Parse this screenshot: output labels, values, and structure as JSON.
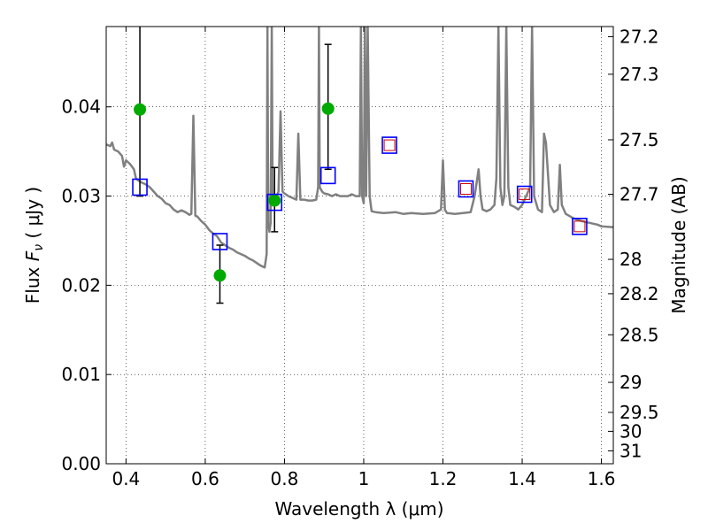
{
  "chart_data": {
    "type": "scatter",
    "title": "",
    "xlabel": "Wavelength  λ (μm)",
    "ylabel": "Flux  F_ν  ( μJy )",
    "ylabel_parts": {
      "pre": "Flux  ",
      "var": "F",
      "sub": "ν",
      "post": "  ( μJy )"
    },
    "y2label": "Magnitude (AB)",
    "xlim": [
      0.35,
      1.63
    ],
    "ylim": [
      0.0,
      0.049
    ],
    "grid": true,
    "x_ticks": [
      {
        "value": 0.4,
        "label": "0.4"
      },
      {
        "value": 0.6,
        "label": "0.6"
      },
      {
        "value": 0.8,
        "label": "0.8"
      },
      {
        "value": 1.0,
        "label": "1"
      },
      {
        "value": 1.2,
        "label": "1.2"
      },
      {
        "value": 1.4,
        "label": "1.4"
      },
      {
        "value": 1.6,
        "label": "1.6"
      }
    ],
    "y_ticks": [
      {
        "value": 0.0,
        "label": "0.00"
      },
      {
        "value": 0.01,
        "label": "0.01"
      },
      {
        "value": 0.02,
        "label": "0.02"
      },
      {
        "value": 0.03,
        "label": "0.03"
      },
      {
        "value": 0.04,
        "label": "0.04"
      }
    ],
    "magnitude_ticks": [
      {
        "mag": 27.2,
        "label": "27.2"
      },
      {
        "mag": 27.3,
        "label": "27.3"
      },
      {
        "mag": 27.5,
        "label": "27.5"
      },
      {
        "mag": 27.7,
        "label": "27.7"
      },
      {
        "mag": 28.0,
        "label": "28"
      },
      {
        "mag": 28.2,
        "label": "28.2"
      },
      {
        "mag": 28.5,
        "label": "28.5"
      },
      {
        "mag": 29.0,
        "label": "29"
      },
      {
        "mag": 29.5,
        "label": "29.5"
      },
      {
        "mag": 30.0,
        "label": "30"
      },
      {
        "mag": 31.0,
        "label": "31"
      }
    ],
    "colors": {
      "model": "#808080",
      "observed": "#00aa00",
      "model_box": "#0000ff",
      "inner_box": "#cc0000",
      "errorbar": "#000000",
      "grid": "#000000"
    },
    "series": [
      {
        "type": "line",
        "points": [
          [
            0.35,
            0.0358
          ],
          [
            0.36,
            0.0356
          ],
          [
            0.365,
            0.036
          ],
          [
            0.37,
            0.0352
          ],
          [
            0.38,
            0.035
          ],
          [
            0.39,
            0.0345
          ],
          [
            0.395,
            0.0333
          ],
          [
            0.4,
            0.034
          ],
          [
            0.41,
            0.0336
          ],
          [
            0.42,
            0.033
          ],
          [
            0.425,
            0.032
          ],
          [
            0.43,
            0.0318
          ],
          [
            0.44,
            0.0315
          ],
          [
            0.45,
            0.0313
          ],
          [
            0.46,
            0.031
          ],
          [
            0.47,
            0.0305
          ],
          [
            0.48,
            0.03
          ],
          [
            0.49,
            0.0297
          ],
          [
            0.5,
            0.0292
          ],
          [
            0.51,
            0.029
          ],
          [
            0.52,
            0.0285
          ],
          [
            0.53,
            0.0282
          ],
          [
            0.54,
            0.0284
          ],
          [
            0.55,
            0.0282
          ],
          [
            0.56,
            0.0279
          ],
          [
            0.565,
            0.028
          ],
          [
            0.57,
            0.039
          ],
          [
            0.575,
            0.0278
          ],
          [
            0.58,
            0.0277
          ],
          [
            0.59,
            0.0272
          ],
          [
            0.6,
            0.0268
          ],
          [
            0.61,
            0.0262
          ],
          [
            0.62,
            0.0258
          ],
          [
            0.63,
            0.0255
          ],
          [
            0.64,
            0.0248
          ],
          [
            0.65,
            0.0245
          ],
          [
            0.66,
            0.0242
          ],
          [
            0.67,
            0.024
          ],
          [
            0.68,
            0.0237
          ],
          [
            0.69,
            0.0235
          ],
          [
            0.7,
            0.0233
          ],
          [
            0.71,
            0.023
          ],
          [
            0.72,
            0.0228
          ],
          [
            0.73,
            0.0225
          ],
          [
            0.74,
            0.0222
          ],
          [
            0.75,
            0.022
          ],
          [
            0.755,
            0.0235
          ],
          [
            0.757,
            0.049
          ],
          [
            0.759,
            0.027
          ],
          [
            0.762,
            0.026
          ],
          [
            0.765,
            0.027
          ],
          [
            0.768,
            0.049
          ],
          [
            0.77,
            0.03
          ],
          [
            0.775,
            0.0295
          ],
          [
            0.78,
            0.03
          ],
          [
            0.785,
            0.0305
          ],
          [
            0.79,
            0.0395
          ],
          [
            0.795,
            0.0305
          ],
          [
            0.8,
            0.0303
          ],
          [
            0.81,
            0.03
          ],
          [
            0.82,
            0.0298
          ],
          [
            0.83,
            0.0296
          ],
          [
            0.835,
            0.037
          ],
          [
            0.84,
            0.0296
          ],
          [
            0.85,
            0.0296
          ],
          [
            0.86,
            0.0295
          ],
          [
            0.87,
            0.0295
          ],
          [
            0.88,
            0.0296
          ],
          [
            0.885,
            0.031
          ],
          [
            0.887,
            0.049
          ],
          [
            0.889,
            0.031
          ],
          [
            0.895,
            0.0305
          ],
          [
            0.9,
            0.0303
          ],
          [
            0.91,
            0.0302
          ],
          [
            0.92,
            0.03
          ],
          [
            0.93,
            0.0302
          ],
          [
            0.94,
            0.03
          ],
          [
            0.95,
            0.03
          ],
          [
            0.96,
            0.03
          ],
          [
            0.97,
            0.0302
          ],
          [
            0.98,
            0.03
          ],
          [
            0.99,
            0.03
          ],
          [
            0.993,
            0.049
          ],
          [
            0.996,
            0.03
          ],
          [
            1.0,
            0.0292
          ],
          [
            1.003,
            0.049
          ],
          [
            1.006,
            0.03
          ],
          [
            1.01,
            0.049
          ],
          [
            1.015,
            0.03
          ],
          [
            1.02,
            0.0283
          ],
          [
            1.03,
            0.0282
          ],
          [
            1.05,
            0.0281
          ],
          [
            1.08,
            0.0282
          ],
          [
            1.1,
            0.028
          ],
          [
            1.12,
            0.0281
          ],
          [
            1.15,
            0.028
          ],
          [
            1.18,
            0.0281
          ],
          [
            1.195,
            0.0285
          ],
          [
            1.2,
            0.034
          ],
          [
            1.205,
            0.0285
          ],
          [
            1.21,
            0.0281
          ],
          [
            1.23,
            0.028
          ],
          [
            1.25,
            0.0281
          ],
          [
            1.27,
            0.0282
          ],
          [
            1.28,
            0.03
          ],
          [
            1.29,
            0.033
          ],
          [
            1.295,
            0.03
          ],
          [
            1.3,
            0.0285
          ],
          [
            1.31,
            0.0283
          ],
          [
            1.32,
            0.0285
          ],
          [
            1.33,
            0.029
          ],
          [
            1.335,
            0.032
          ],
          [
            1.34,
            0.049
          ],
          [
            1.345,
            0.031
          ],
          [
            1.35,
            0.029
          ],
          [
            1.355,
            0.03
          ],
          [
            1.36,
            0.049
          ],
          [
            1.365,
            0.031
          ],
          [
            1.37,
            0.029
          ],
          [
            1.38,
            0.0288
          ],
          [
            1.39,
            0.0285
          ],
          [
            1.4,
            0.029
          ],
          [
            1.41,
            0.03
          ],
          [
            1.42,
            0.031
          ],
          [
            1.425,
            0.049
          ],
          [
            1.43,
            0.03
          ],
          [
            1.44,
            0.0285
          ],
          [
            1.45,
            0.0282
          ],
          [
            1.455,
            0.037
          ],
          [
            1.46,
            0.036
          ],
          [
            1.47,
            0.029
          ],
          [
            1.48,
            0.0282
          ],
          [
            1.49,
            0.0285
          ],
          [
            1.495,
            0.0335
          ],
          [
            1.5,
            0.029
          ],
          [
            1.51,
            0.028
          ],
          [
            1.53,
            0.0275
          ],
          [
            1.55,
            0.0272
          ],
          [
            1.57,
            0.027
          ],
          [
            1.59,
            0.0268
          ],
          [
            1.6,
            0.0266
          ],
          [
            1.63,
            0.0265
          ]
        ]
      },
      {
        "type": "errorbar",
        "points": [
          {
            "x": 0.435,
            "y": 0.0397,
            "ylo": 0.03,
            "yhi": 0.049
          },
          {
            "x": 0.775,
            "y": 0.0295,
            "ylo": 0.026,
            "yhi": 0.0332
          },
          {
            "x": 0.91,
            "y": 0.0398,
            "ylo": 0.033,
            "yhi": 0.047
          },
          {
            "x": 0.637,
            "y": 0.0211,
            "ylo": 0.018,
            "yhi": 0.0245
          }
        ]
      },
      {
        "type": "marker",
        "points": [
          {
            "x": 0.435,
            "y": 0.031
          },
          {
            "x": 0.637,
            "y": 0.0249
          },
          {
            "x": 0.775,
            "y": 0.0293
          },
          {
            "x": 0.91,
            "y": 0.0323
          }
        ]
      },
      {
        "type": "double_marker",
        "points": [
          {
            "x": 1.065,
            "y": 0.0357
          },
          {
            "x": 1.258,
            "y": 0.0308
          },
          {
            "x": 1.406,
            "y": 0.0302
          },
          {
            "x": 1.545,
            "y": 0.0266
          }
        ]
      }
    ]
  }
}
